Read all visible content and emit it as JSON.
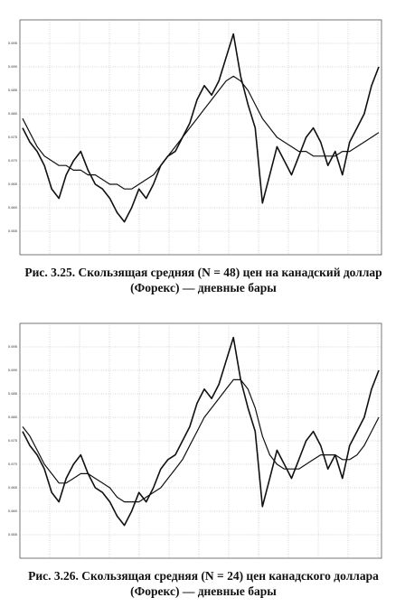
{
  "chart_data": [
    {
      "type": "line",
      "caption": "Рис. 3.25. Скользящая средняя (N = 48) цен на канадский доллар (Форекс) — дневные бары",
      "ylim": [
        0.65,
        0.7
      ],
      "yticks": [
        {
          "value": 0.655,
          "label": "0.655"
        },
        {
          "value": 0.66,
          "label": "0.660"
        },
        {
          "value": 0.665,
          "label": "0.665"
        },
        {
          "value": 0.67,
          "label": "0.670"
        },
        {
          "value": 0.675,
          "label": "0.675"
        },
        {
          "value": 0.68,
          "label": "0.680"
        },
        {
          "value": 0.685,
          "label": "0.685"
        },
        {
          "value": 0.69,
          "label": "0.690"
        },
        {
          "value": 0.695,
          "label": "0.695"
        }
      ],
      "grid": true,
      "series": [
        {
          "color": "#111111",
          "values": [
            0.677,
            0.674,
            0.672,
            0.669,
            0.664,
            0.662,
            0.667,
            0.67,
            0.672,
            0.668,
            0.665,
            0.664,
            0.662,
            0.659,
            0.657,
            0.66,
            0.664,
            0.662,
            0.665,
            0.669,
            0.671,
            0.672,
            0.675,
            0.678,
            0.683,
            0.686,
            0.684,
            0.687,
            0.692,
            0.697,
            0.688,
            0.682,
            0.677,
            0.661,
            0.667,
            0.673,
            0.67,
            0.667,
            0.671,
            0.675,
            0.677,
            0.674,
            0.669,
            0.672,
            0.667,
            0.674,
            0.677,
            0.68,
            0.686,
            0.69
          ]
        },
        {
          "color": "#111111",
          "values": [
            0.679,
            0.676,
            0.673,
            0.671,
            0.67,
            0.669,
            0.669,
            0.668,
            0.668,
            0.667,
            0.667,
            0.666,
            0.665,
            0.665,
            0.664,
            0.664,
            0.665,
            0.666,
            0.667,
            0.669,
            0.671,
            0.673,
            0.675,
            0.677,
            0.679,
            0.681,
            0.683,
            0.685,
            0.687,
            0.688,
            0.687,
            0.685,
            0.682,
            0.679,
            0.677,
            0.675,
            0.674,
            0.673,
            0.672,
            0.672,
            0.671,
            0.671,
            0.671,
            0.671,
            0.672,
            0.672,
            0.673,
            0.674,
            0.675,
            0.676
          ]
        }
      ]
    },
    {
      "type": "line",
      "caption": "Рис. 3.26. Скользящая средняя (N = 24) цен канадского доллара (Форекс) — дневные бары",
      "ylim": [
        0.65,
        0.7
      ],
      "yticks": [
        {
          "value": 0.655,
          "label": "0.655"
        },
        {
          "value": 0.66,
          "label": "0.660"
        },
        {
          "value": 0.665,
          "label": "0.665"
        },
        {
          "value": 0.67,
          "label": "0.670"
        },
        {
          "value": 0.675,
          "label": "0.675"
        },
        {
          "value": 0.68,
          "label": "0.680"
        },
        {
          "value": 0.685,
          "label": "0.685"
        },
        {
          "value": 0.69,
          "label": "0.690"
        },
        {
          "value": 0.695,
          "label": "0.695"
        }
      ],
      "grid": true,
      "series": [
        {
          "color": "#111111",
          "values": [
            0.677,
            0.674,
            0.672,
            0.669,
            0.664,
            0.662,
            0.667,
            0.67,
            0.672,
            0.668,
            0.665,
            0.664,
            0.662,
            0.659,
            0.657,
            0.66,
            0.664,
            0.662,
            0.665,
            0.669,
            0.671,
            0.672,
            0.675,
            0.678,
            0.683,
            0.686,
            0.684,
            0.687,
            0.692,
            0.697,
            0.688,
            0.682,
            0.677,
            0.661,
            0.667,
            0.673,
            0.67,
            0.667,
            0.671,
            0.675,
            0.677,
            0.674,
            0.669,
            0.672,
            0.667,
            0.674,
            0.677,
            0.68,
            0.686,
            0.69
          ]
        },
        {
          "color": "#111111",
          "values": [
            0.678,
            0.676,
            0.673,
            0.67,
            0.668,
            0.666,
            0.666,
            0.667,
            0.668,
            0.668,
            0.667,
            0.666,
            0.665,
            0.663,
            0.662,
            0.662,
            0.662,
            0.663,
            0.664,
            0.665,
            0.667,
            0.669,
            0.671,
            0.674,
            0.677,
            0.68,
            0.682,
            0.684,
            0.686,
            0.688,
            0.688,
            0.686,
            0.682,
            0.676,
            0.672,
            0.67,
            0.669,
            0.669,
            0.669,
            0.67,
            0.671,
            0.672,
            0.672,
            0.672,
            0.671,
            0.671,
            0.672,
            0.674,
            0.677,
            0.68
          ]
        }
      ]
    }
  ]
}
